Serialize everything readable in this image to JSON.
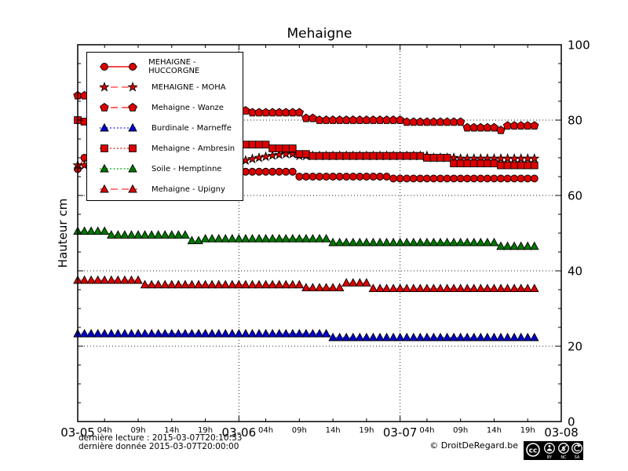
{
  "title": "Mehaigne",
  "y_axis": {
    "label": "Hauteur cm",
    "min": 0,
    "max": 100,
    "major_ticks": [
      0,
      20,
      40,
      60,
      80,
      100
    ],
    "minor_step": 5,
    "gridlines": [
      20,
      40,
      60,
      80
    ]
  },
  "x_axis": {
    "date_labels": [
      "03-05",
      "03-06",
      "03-07",
      "03-08"
    ],
    "hour_labels": [
      "04h",
      "09h",
      "14h",
      "19h"
    ],
    "hour_offsets": [
      4,
      9,
      14,
      19
    ],
    "hours_per_day": 24,
    "total_hours": 72,
    "day_gridlines_hours": [
      24,
      48
    ]
  },
  "footer": {
    "last_reading": "dernière lecture : 2015-03-07T20:10:33",
    "last_data": "dernière donnée  2015-03-07T20:00:00",
    "copyright": "© DroitDeRegard.be",
    "license": {
      "cc_label": "cc",
      "terms": [
        "BY",
        "NC",
        "SA"
      ]
    }
  },
  "chart_data": {
    "type": "line",
    "title": "Mehaigne",
    "ylabel": "Hauteur cm",
    "ylim": [
      0,
      100
    ],
    "x_start": "2015-03-05T00:00",
    "x_end": "2015-03-07T20:00",
    "x_step_hours": 1,
    "grid": "dotted major gridlines",
    "legend_position": "upper left",
    "series": [
      {
        "name": "MEHAIGNE - HUCCORGNE",
        "marker": "circle",
        "line_style": "solid",
        "color": "#dd0000",
        "line_color": "#ee1111",
        "values": [
          67,
          70,
          69.8,
          69.5,
          69.3,
          69,
          68.8,
          68.5,
          68.3,
          68,
          67.8,
          67.5,
          67.3,
          67,
          66.8,
          66.5,
          66.3,
          66,
          65.8,
          65.5,
          65.3,
          65,
          64.8,
          64.5,
          66.3,
          66.3,
          66.3,
          66.3,
          66.3,
          66.3,
          66.3,
          66.3,
          66.3,
          65,
          65,
          65,
          65,
          65,
          65,
          65,
          65,
          65,
          65,
          65,
          65,
          65,
          65,
          64.5,
          64.5,
          64.5,
          64.5,
          64.5,
          64.5,
          64.5,
          64.5,
          64.5,
          64.5,
          64.5,
          64.5,
          64.5,
          64.5,
          64.5,
          64.5,
          64.5,
          64.5,
          64.5,
          64.5,
          64.5,
          64.5
        ]
      },
      {
        "name": "MEHAIGNE - MOHA",
        "marker": "star",
        "line_style": "dashed",
        "color": "#dd0000",
        "line_color": "#ff5555",
        "values": [
          68,
          68,
          68,
          68,
          68,
          68,
          68,
          68,
          68,
          68,
          68,
          68,
          68,
          68,
          68,
          68,
          68,
          68,
          68,
          68,
          68,
          68.2,
          68.5,
          68.7,
          69,
          69.3,
          69.7,
          70,
          70.3,
          70.6,
          70.8,
          71,
          71,
          70.5,
          70.5,
          70.5,
          70.5,
          70.5,
          70.5,
          70.5,
          70.5,
          70.5,
          70.5,
          70.5,
          70.5,
          70.5,
          70.5,
          70.5,
          70.5,
          70.5,
          70.5,
          70.5,
          70.5,
          70,
          70,
          70,
          70,
          69.8,
          69.8,
          69.8,
          69.8,
          69.8,
          69.8,
          69.8,
          69.8,
          69.8,
          69.8,
          69.8,
          69.8
        ]
      },
      {
        "name": "Mehaigne - Wanze",
        "marker": "pentagon",
        "line_style": "dashed",
        "color": "#dd0000",
        "line_color": "#ff3333",
        "values": [
          86.5,
          86.5,
          86,
          86,
          85.5,
          85.5,
          85,
          85,
          84.5,
          84.5,
          84,
          84,
          83.5,
          83.5,
          83.5,
          83,
          83,
          83,
          82.5,
          82.5,
          82.5,
          82.5,
          82.5,
          82.5,
          82.5,
          82.5,
          82,
          82,
          82,
          82,
          82,
          82,
          82,
          82,
          80.5,
          80.5,
          80,
          80,
          80,
          80,
          80,
          80,
          80,
          80,
          80,
          80,
          80,
          80,
          80,
          79.5,
          79.5,
          79.5,
          79.5,
          79.5,
          79.5,
          79.5,
          79.5,
          79.5,
          78,
          78,
          78,
          78,
          78,
          77.3,
          78.5,
          78.5,
          78.5,
          78.5,
          78.5
        ]
      },
      {
        "name": "Burdinale - Marneffe",
        "marker": "triangle",
        "line_style": "dotted",
        "color": "#0000cc",
        "line_color": "#2222ff",
        "values": [
          23.3,
          23.3,
          23.3,
          23.3,
          23.3,
          23.3,
          23.3,
          23.3,
          23.3,
          23.3,
          23.3,
          23.3,
          23.3,
          23.3,
          23.3,
          23.3,
          23.3,
          23.3,
          23.3,
          23.3,
          23.3,
          23.3,
          23.3,
          23.3,
          23.3,
          23.3,
          23.3,
          23.3,
          23.3,
          23.3,
          23.3,
          23.3,
          23.3,
          23.3,
          23.3,
          23.3,
          23.3,
          23.3,
          22.3,
          22.3,
          22.3,
          22.3,
          22.3,
          22.3,
          22.3,
          22.3,
          22.3,
          22.3,
          22.3,
          22.3,
          22.3,
          22.3,
          22.3,
          22.3,
          22.3,
          22.3,
          22.3,
          22.3,
          22.3,
          22.3,
          22.3,
          22.3,
          22.3,
          22.3,
          22.3,
          22.3,
          22.3,
          22.3,
          22.3
        ]
      },
      {
        "name": "Mehaigne - Ambresin",
        "marker": "square",
        "line_style": "dotted",
        "color": "#dd0000",
        "line_color": "#ee1111",
        "values": [
          80,
          79.6,
          79.2,
          78.8,
          78.4,
          78,
          77.6,
          77.2,
          76.8,
          76.4,
          76,
          75.6,
          75.2,
          74.8,
          74.5,
          74.2,
          74,
          73.8,
          73.5,
          73.5,
          73.5,
          73.5,
          73.5,
          73.5,
          73.5,
          73.5,
          73.5,
          73.5,
          73.5,
          72.5,
          72.5,
          72.5,
          72.5,
          71,
          71,
          70.5,
          70.5,
          70.5,
          70.5,
          70.5,
          70.5,
          70.5,
          70.5,
          70.5,
          70.5,
          70.5,
          70.5,
          70.5,
          70.5,
          70.5,
          70.5,
          70.5,
          70,
          70,
          70,
          70,
          68.5,
          68.5,
          68.5,
          68.5,
          68.5,
          68.5,
          68.5,
          68,
          68,
          68,
          68,
          68,
          68
        ]
      },
      {
        "name": "Soile - Hemptinne",
        "marker": "triangle",
        "line_style": "dotted",
        "color": "#007700",
        "line_color": "#00aa00",
        "values": [
          50.5,
          50.5,
          50.5,
          50.5,
          50.5,
          49.5,
          49.5,
          49.5,
          49.5,
          49.5,
          49.5,
          49.5,
          49.5,
          49.5,
          49.5,
          49.5,
          49.5,
          48,
          48,
          48.5,
          48.5,
          48.5,
          48.5,
          48.5,
          48.5,
          48.5,
          48.5,
          48.5,
          48.5,
          48.5,
          48.5,
          48.5,
          48.5,
          48.5,
          48.5,
          48.5,
          48.5,
          48.5,
          47.5,
          47.5,
          47.5,
          47.5,
          47.5,
          47.5,
          47.5,
          47.5,
          47.5,
          47.5,
          47.5,
          47.5,
          47.5,
          47.5,
          47.5,
          47.5,
          47.5,
          47.5,
          47.5,
          47.5,
          47.5,
          47.5,
          47.5,
          47.5,
          47.5,
          46.5,
          46.5,
          46.5,
          46.5,
          46.5,
          46.5
        ]
      },
      {
        "name": "Mehaigne - Upigny",
        "marker": "triangle",
        "line_style": "dashed",
        "color": "#dd0000",
        "line_color": "#ff5555",
        "values": [
          37.5,
          37.5,
          37.5,
          37.5,
          37.5,
          37.5,
          37.5,
          37.5,
          37.5,
          37.5,
          36.3,
          36.3,
          36.3,
          36.3,
          36.3,
          36.3,
          36.3,
          36.3,
          36.3,
          36.3,
          36.3,
          36.3,
          36.3,
          36.3,
          36.3,
          36.3,
          36.3,
          36.3,
          36.3,
          36.3,
          36.3,
          36.3,
          36.3,
          36.3,
          35.5,
          35.5,
          35.5,
          35.5,
          35.5,
          35.5,
          36.8,
          36.8,
          36.8,
          36.8,
          35.3,
          35.3,
          35.3,
          35.3,
          35.3,
          35.3,
          35.3,
          35.3,
          35.3,
          35.3,
          35.3,
          35.3,
          35.3,
          35.3,
          35.3,
          35.3,
          35.3,
          35.3,
          35.3,
          35.3,
          35.3,
          35.3,
          35.3,
          35.3,
          35.3
        ]
      }
    ]
  }
}
